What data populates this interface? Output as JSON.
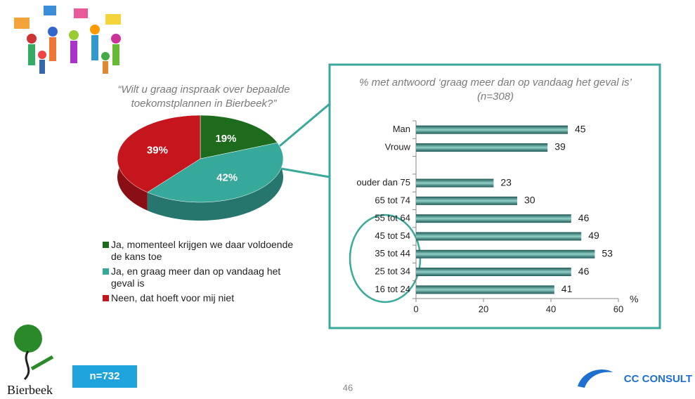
{
  "logos": {
    "left": "Bierbeek",
    "right": "CC CONSULT"
  },
  "sample_badge": "n=732",
  "page_number": "46",
  "chart_data": [
    {
      "type": "pie",
      "title": "“Wilt u graag inspraak over bepaalde toekomstplannen in Bierbeek?”",
      "categories": [
        "Ja, momenteel krijgen we daar voldoende de kans toe",
        "Ja, en graag meer dan op vandaag het geval is",
        "Neen, dat hoeft voor mij niet"
      ],
      "values": [
        19,
        42,
        39
      ],
      "value_labels": [
        "19%",
        "42%",
        "39%"
      ],
      "colors": [
        "#1d6b1d",
        "#36a99b",
        "#c4161c"
      ]
    },
    {
      "type": "hbar",
      "title": "% met antwoord ‘graag meer dan op vandaag het geval is’ (n=308)",
      "x_label": "%",
      "categories": [
        "Man",
        "Vrouw",
        null,
        "ouder dan 75",
        "65 tot 74",
        "55 tot 64",
        "45 tot 54",
        "35 tot 44",
        "25 tot 34",
        "16 tot 24"
      ],
      "values": [
        45,
        39,
        null,
        23,
        30,
        46,
        49,
        53,
        46,
        41
      ],
      "color": "#1e5856",
      "xlim": [
        0,
        60
      ],
      "xticks": [
        0,
        20,
        40,
        60
      ]
    }
  ]
}
